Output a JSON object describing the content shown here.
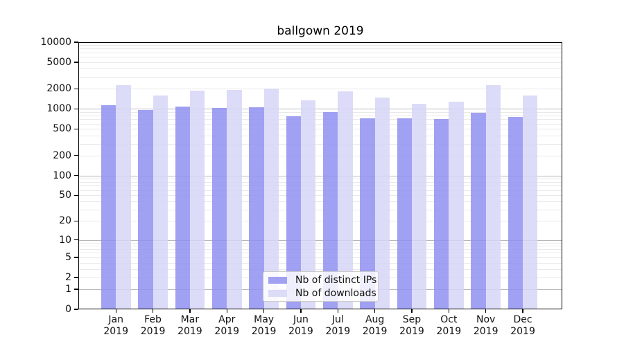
{
  "chart_data": {
    "type": "bar",
    "title": "ballgown 2019",
    "categories": [
      "Jan 2019",
      "Feb 2019",
      "Mar 2019",
      "Apr 2019",
      "May 2019",
      "Jun 2019",
      "Jul 2019",
      "Aug 2019",
      "Sep 2019",
      "Oct 2019",
      "Nov 2019",
      "Dec 2019"
    ],
    "months_short": [
      "Jan",
      "Feb",
      "Mar",
      "Apr",
      "May",
      "Jun",
      "Jul",
      "Aug",
      "Sep",
      "Oct",
      "Nov",
      "Dec"
    ],
    "x_year_label": "2019",
    "series": [
      {
        "name": "Nb of distinct IPs",
        "color": "#a1a1f3",
        "values": [
          1130,
          970,
          1080,
          1030,
          1055,
          775,
          900,
          725,
          725,
          700,
          885,
          765
        ]
      },
      {
        "name": "Nb of downloads",
        "color": "#dcdcf8",
        "values": [
          2270,
          1590,
          1870,
          1920,
          2010,
          1350,
          1840,
          1465,
          1190,
          1285,
          2300,
          1590
        ]
      }
    ],
    "yscale": "log1p",
    "ylim": [
      0,
      10000
    ],
    "yticks": [
      10000,
      5000,
      2000,
      1000,
      500,
      200,
      100,
      50,
      20,
      10,
      5,
      2,
      1,
      0
    ],
    "grid": "horizontal only; darker lines at powers of 10, light minor lines at 2-9 multiples",
    "legend_position": "bottom-center inside plot",
    "colors": {
      "grid_major": "#b7b7b7",
      "grid_minor": "#e9e9e9",
      "axis": "#000000",
      "background": "#ffffff"
    }
  }
}
